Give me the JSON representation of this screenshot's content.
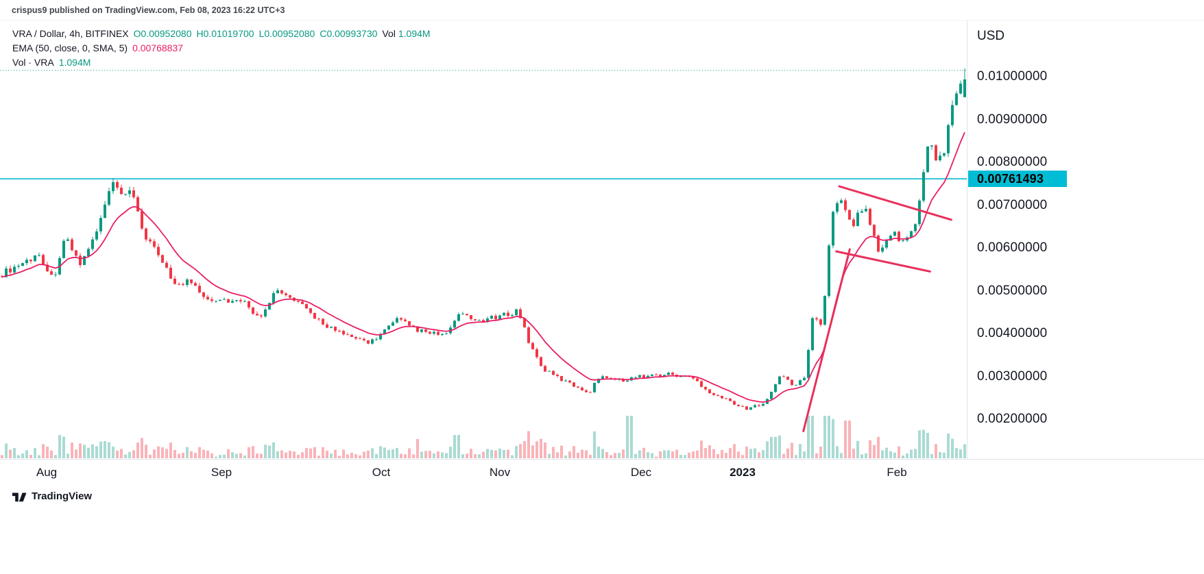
{
  "header": {
    "text": "crispus9 published on TradingView.com, Feb 08, 2023 16:22 UTC+3"
  },
  "legend": {
    "symbol": "VRA / Dollar, 4h, BITFINEX",
    "open": "O0.00952080",
    "high": "H0.01019700",
    "low": "L0.00952080",
    "close": "C0.00993730",
    "vol_label": "Vol",
    "vol_value": "1.094M",
    "ema_label": "EMA (50, close, 0, SMA, 5)",
    "ema_value": "0.00768837",
    "vol_row_label": "Vol · VRA",
    "vol_row_value": "1.094M"
  },
  "footer": {
    "brand": "TradingView"
  },
  "chart_data": {
    "type": "candlestick",
    "symbol": "VRA/USD",
    "interval": "4h",
    "exchange": "BITFINEX",
    "last": {
      "open": 0.0095208,
      "high": 0.010197,
      "low": 0.0095208,
      "close": 0.0099373
    },
    "ema": {
      "period": 50,
      "value": 0.00768837
    },
    "volume": {
      "last": "1.094M"
    },
    "ylim": [
      0.00107,
      0.01131
    ],
    "y_axis": {
      "currency": "USD",
      "ticks": [
        {
          "label": "0.01000000",
          "value": 0.01
        },
        {
          "label": "0.00900000",
          "value": 0.009
        },
        {
          "label": "0.00800000",
          "value": 0.008
        },
        {
          "label": "0.00700000",
          "value": 0.007
        },
        {
          "label": "0.00600000",
          "value": 0.006
        },
        {
          "label": "0.00500000",
          "value": 0.005
        },
        {
          "label": "0.00400000",
          "value": 0.004
        },
        {
          "label": "0.00300000",
          "value": 0.003
        },
        {
          "label": "0.00200000",
          "value": 0.002
        }
      ]
    },
    "x_axis": {
      "ticks": [
        {
          "label": "Aug",
          "t": 0.048
        },
        {
          "label": "Sep",
          "t": 0.229
        },
        {
          "label": "Oct",
          "t": 0.394
        },
        {
          "label": "Nov",
          "t": 0.517
        },
        {
          "label": "Dec",
          "t": 0.663
        },
        {
          "label": "2023",
          "t": 0.768,
          "year": true
        },
        {
          "label": "Feb",
          "t": 0.928
        }
      ]
    },
    "horizontal_line": {
      "price": 0.00761493,
      "label": "0.00761493"
    },
    "dotted_line": {
      "price": 0.01015
    },
    "trend_lines": [
      {
        "t1": 0.831,
        "p1": 0.00172,
        "t2": 0.879,
        "p2": 0.00597
      },
      {
        "t1": 0.868,
        "p1": 0.00744,
        "t2": 0.984,
        "p2": 0.00666
      },
      {
        "t1": 0.865,
        "p1": 0.00592,
        "t2": 0.962,
        "p2": 0.00545
      }
    ],
    "keyframes": [
      [
        0.0,
        0.0054
      ],
      [
        0.021,
        0.00565
      ],
      [
        0.039,
        0.00585
      ],
      [
        0.053,
        0.00525
      ],
      [
        0.065,
        0.00625
      ],
      [
        0.082,
        0.0056
      ],
      [
        0.101,
        0.0065
      ],
      [
        0.113,
        0.00748
      ],
      [
        0.128,
        0.00715
      ],
      [
        0.135,
        0.00738
      ],
      [
        0.149,
        0.0062
      ],
      [
        0.16,
        0.0059
      ],
      [
        0.17,
        0.0056
      ],
      [
        0.181,
        0.00508
      ],
      [
        0.195,
        0.00525
      ],
      [
        0.213,
        0.00483
      ],
      [
        0.234,
        0.00478
      ],
      [
        0.255,
        0.0047
      ],
      [
        0.266,
        0.00435
      ],
      [
        0.284,
        0.005
      ],
      [
        0.305,
        0.00475
      ],
      [
        0.33,
        0.0043
      ],
      [
        0.355,
        0.00395
      ],
      [
        0.383,
        0.0038
      ],
      [
        0.411,
        0.00432
      ],
      [
        0.44,
        0.004
      ],
      [
        0.464,
        0.00398
      ],
      [
        0.472,
        0.00445
      ],
      [
        0.492,
        0.0043
      ],
      [
        0.515,
        0.00437
      ],
      [
        0.536,
        0.00455
      ],
      [
        0.549,
        0.0037
      ],
      [
        0.563,
        0.00315
      ],
      [
        0.585,
        0.00288
      ],
      [
        0.61,
        0.00262
      ],
      [
        0.622,
        0.00305
      ],
      [
        0.64,
        0.0029
      ],
      [
        0.663,
        0.003
      ],
      [
        0.694,
        0.00305
      ],
      [
        0.718,
        0.00295
      ],
      [
        0.736,
        0.00262
      ],
      [
        0.76,
        0.00238
      ],
      [
        0.773,
        0.00222
      ],
      [
        0.792,
        0.0024
      ],
      [
        0.81,
        0.00305
      ],
      [
        0.82,
        0.0028
      ],
      [
        0.833,
        0.0029
      ],
      [
        0.843,
        0.0045
      ],
      [
        0.852,
        0.00415
      ],
      [
        0.862,
        0.0068
      ],
      [
        0.872,
        0.0072
      ],
      [
        0.882,
        0.0065
      ],
      [
        0.897,
        0.007
      ],
      [
        0.911,
        0.0058
      ],
      [
        0.922,
        0.0064
      ],
      [
        0.936,
        0.00615
      ],
      [
        0.95,
        0.00655
      ],
      [
        0.958,
        0.0079
      ],
      [
        0.964,
        0.0087
      ],
      [
        0.971,
        0.00795
      ],
      [
        0.979,
        0.00825
      ],
      [
        0.989,
        0.0096
      ],
      [
        1.0,
        0.00994
      ]
    ],
    "volume_spikes": [
      {
        "t": 0.433,
        "h": 28
      },
      {
        "t": 0.472,
        "h": 34
      },
      {
        "t": 0.652,
        "h": 62
      },
      {
        "t": 0.878,
        "h": 55
      }
    ],
    "candle_count": 235,
    "colors": {
      "up": "#089981",
      "down": "#f23645",
      "vol_up": "rgba(8,153,129,0.35)",
      "vol_down": "rgba(242,54,69,0.38)",
      "ema": "#e91e63",
      "trend": "#e8305a",
      "hline": "#00bcd4",
      "dotted": "#089981",
      "tag_bg": "#00bcd4",
      "tag_text": "#000000"
    }
  }
}
